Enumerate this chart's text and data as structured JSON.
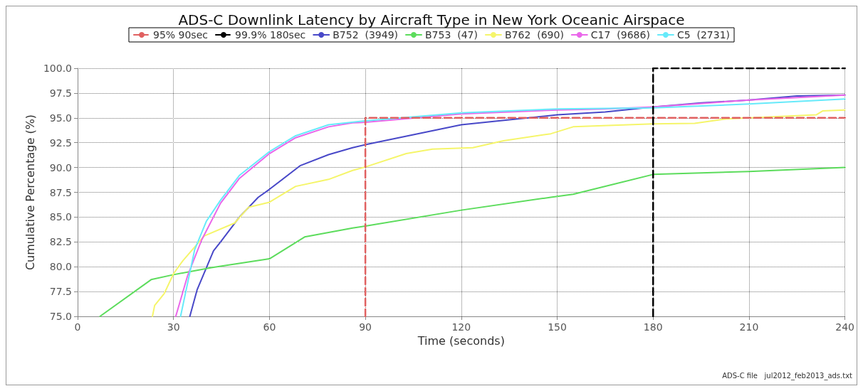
{
  "chart_data": {
    "type": "line",
    "title": "ADS-C Downlink Latency by Aircraft Type in New York Oceanic Airspace",
    "xlabel": "Time (seconds)",
    "ylabel": "Cumulative Percentage (%)",
    "xlim": [
      0,
      240
    ],
    "ylim": [
      75,
      100
    ],
    "xticks": [
      0,
      30,
      60,
      90,
      120,
      150,
      180,
      210,
      240
    ],
    "yticks": [
      {
        "value": 75,
        "label": "75.0"
      },
      {
        "value": 77.5,
        "label": "77.5"
      },
      {
        "value": 80,
        "label": "80.0"
      },
      {
        "value": 82.5,
        "label": "82.5"
      },
      {
        "value": 85,
        "label": "85.0"
      },
      {
        "value": 87.5,
        "label": "87.5"
      },
      {
        "value": 90,
        "label": "90.0"
      },
      {
        "value": 92.5,
        "label": "92.5"
      },
      {
        "value": 95,
        "label": "95.0"
      },
      {
        "value": 97.5,
        "label": "97.5"
      },
      {
        "value": 100,
        "label": "100.0"
      }
    ],
    "grid": true,
    "legend": "top",
    "marker": "none",
    "line_style": "solid",
    "annotations": [
      "ADS-C file   jul2012_feb2013_ads.txt"
    ],
    "series": [
      {
        "name": "95% 90sec",
        "color": "#e06060",
        "line_style": "dashed",
        "x": [
          90,
          90,
          240
        ],
        "values": [
          75,
          95,
          95
        ]
      },
      {
        "name": "99.9% 180sec",
        "color": "#000000",
        "line_style": "dashed",
        "x": [
          180,
          180,
          240
        ],
        "values": [
          75,
          100,
          100
        ]
      },
      {
        "name": "B752  (3949)",
        "color": "#4848c8",
        "x": [
          35.1,
          37.4,
          42.5,
          44.7,
          50.6,
          56.5,
          60,
          69.7,
          78.5,
          86,
          90,
          105,
          120,
          135,
          150,
          165,
          180,
          195,
          210,
          225,
          240
        ],
        "values": [
          75,
          77.7,
          81.6,
          82.5,
          85,
          87,
          87.8,
          90.2,
          91.3,
          92,
          92.3,
          93.3,
          94.3,
          94.8,
          95.3,
          95.6,
          96.1,
          96.5,
          96.8,
          97.2,
          97.3
        ]
      },
      {
        "name": "B753  (47)",
        "color": "#5cdc5c",
        "x": [
          7,
          23,
          30,
          41.8,
          60,
          71,
          86,
          90,
          120,
          148,
          155,
          180,
          210,
          240
        ],
        "values": [
          75,
          78.7,
          79.2,
          79.9,
          80.8,
          83,
          83.9,
          84.1,
          85.7,
          87,
          87.3,
          89.3,
          89.6,
          90
        ]
      },
      {
        "name": "B762  (690)",
        "color": "#f5f56a",
        "x": [
          23.4,
          24.1,
          27.1,
          30,
          32.9,
          39.6,
          49.1,
          53.5,
          60,
          68.2,
          78.5,
          86,
          90,
          102.8,
          111,
          123.6,
          133.2,
          148,
          155,
          180,
          193,
          203,
          231,
          233,
          240
        ],
        "values": [
          75,
          76.1,
          77.3,
          79.3,
          80.6,
          83.1,
          84.4,
          86,
          86.5,
          88.1,
          88.8,
          89.7,
          90.05,
          91.4,
          91.85,
          92,
          92.7,
          93.4,
          94.1,
          94.4,
          94.45,
          94.9,
          95.3,
          95.7,
          95.8
        ]
      },
      {
        "name": "C17  (9686)",
        "color": "#ea66ea",
        "x": [
          30.7,
          34.4,
          38.8,
          44.7,
          50.6,
          60,
          68.2,
          78.5,
          86,
          90,
          120,
          150,
          165,
          180,
          210,
          240
        ],
        "values": [
          75,
          79.1,
          82.7,
          86.4,
          88.9,
          91.4,
          93,
          94.1,
          94.5,
          94.55,
          95.4,
          95.8,
          95.9,
          96.1,
          96.8,
          97.3
        ]
      },
      {
        "name": "C5  (2731)",
        "color": "#66eafa",
        "x": [
          32.2,
          36.6,
          40.3,
          44.7,
          50.6,
          60,
          68.2,
          78.5,
          90,
          120,
          150,
          180,
          210,
          240
        ],
        "values": [
          75,
          81.7,
          84.6,
          86.7,
          89.2,
          91.6,
          93.2,
          94.3,
          94.7,
          95.5,
          95.9,
          96,
          96.4,
          96.9
        ]
      }
    ]
  }
}
